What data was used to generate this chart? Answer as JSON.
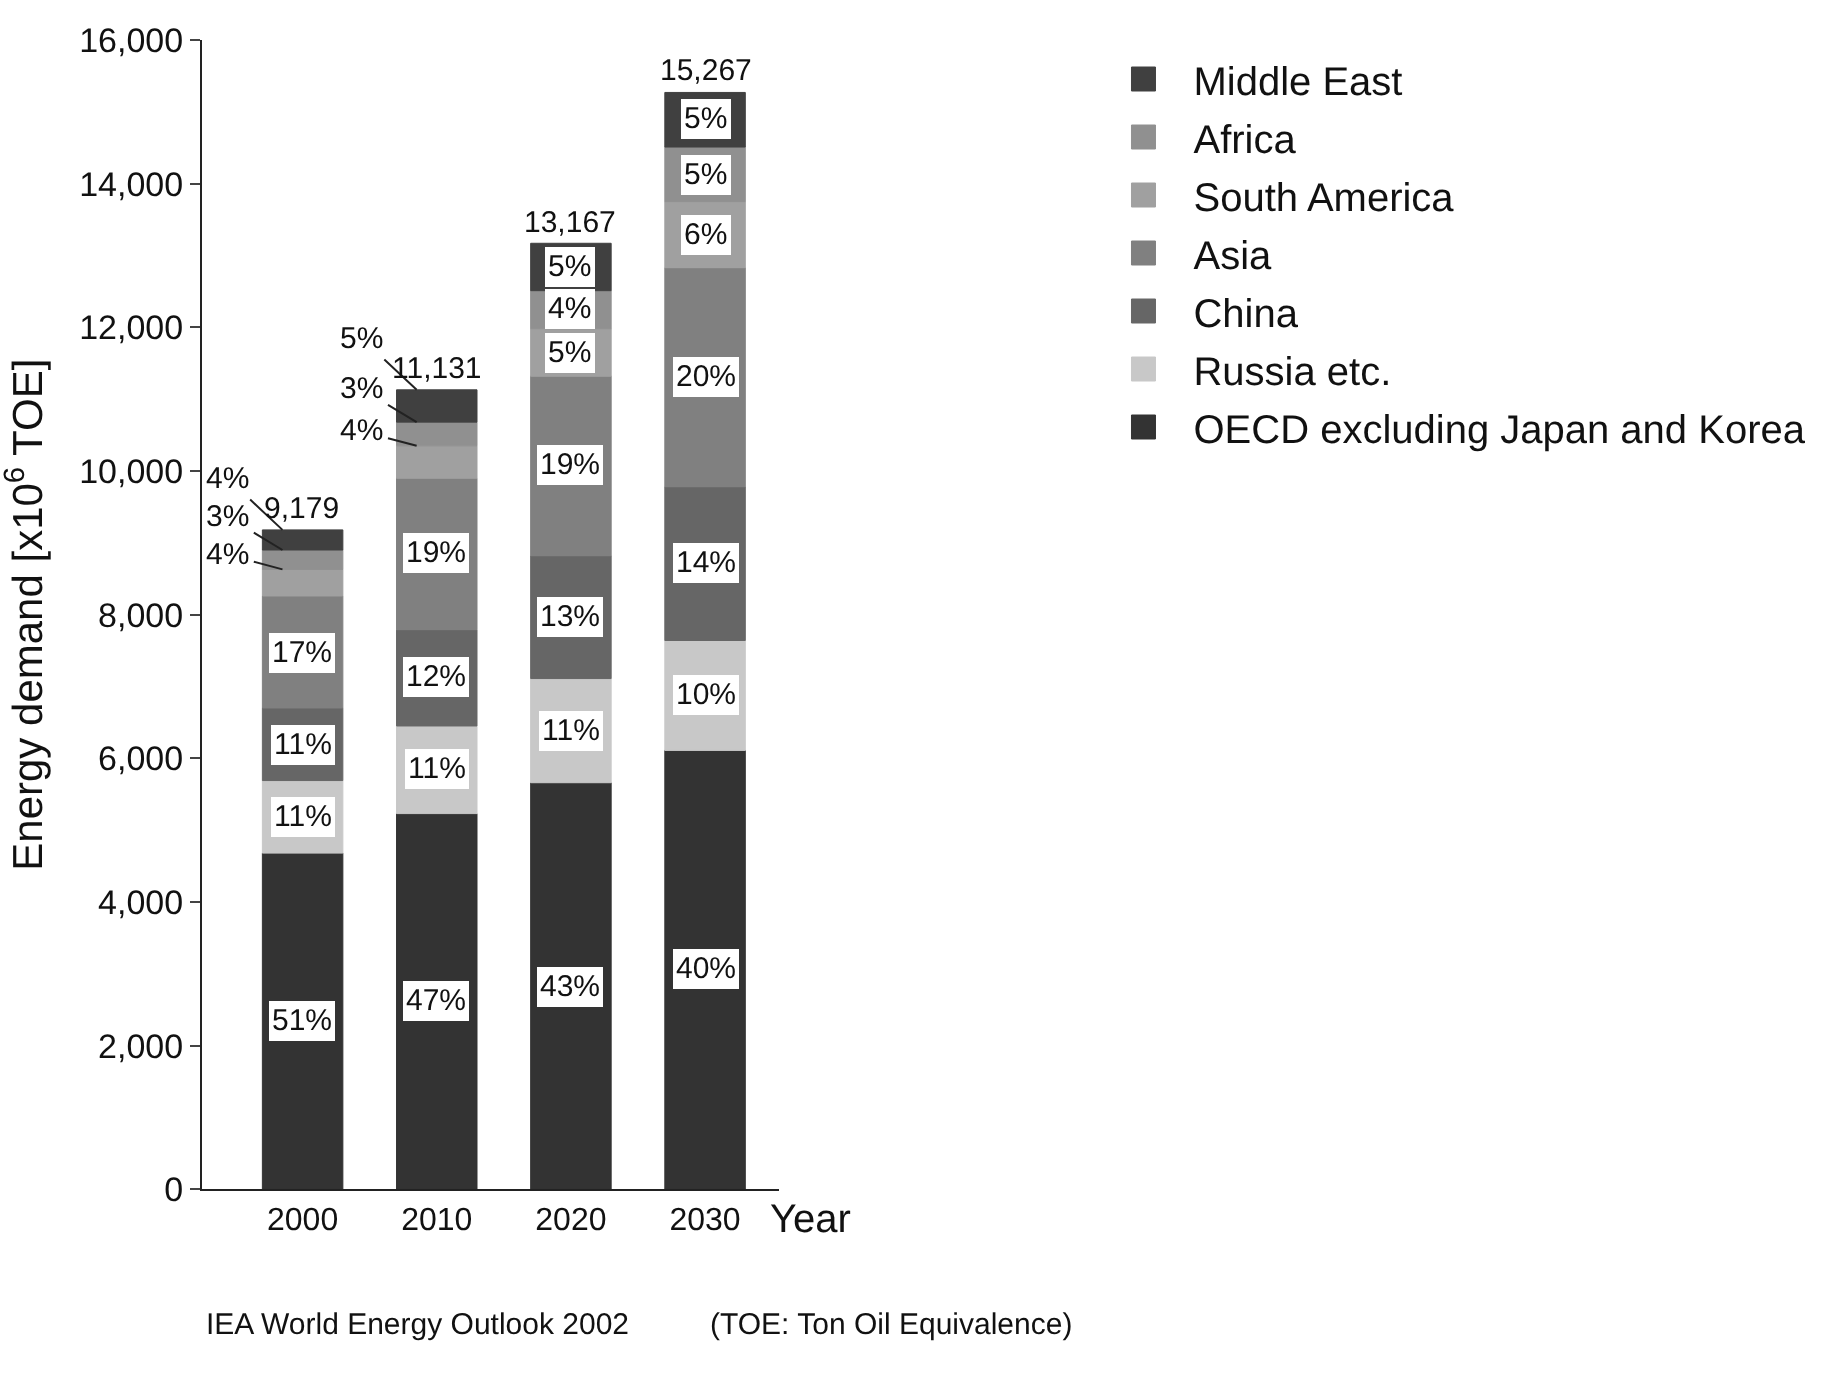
{
  "chart_data": {
    "type": "bar",
    "stacked": true,
    "ylabel": "Energy demand [x10$^{6}$ TOE]",
    "xlabel": "Year",
    "categories": [
      "2000",
      "2010",
      "2020",
      "2030"
    ],
    "ylim": [
      0,
      16000
    ],
    "yticks": [
      0,
      {
        "value": 2000,
        "label": "2,000"
      },
      {
        "value": 4000,
        "label": "4,000"
      },
      {
        "value": 6000,
        "label": "6,000"
      },
      {
        "value": 8000,
        "label": "8,000"
      },
      {
        "value": 10000,
        "label": "10,000"
      },
      {
        "value": 12000,
        "label": "12,000"
      },
      {
        "value": 14000,
        "label": "14,000"
      },
      {
        "value": 16000,
        "label": "16,000"
      }
    ],
    "legend": "right",
    "series": [
      {
        "name": "OECD excluding Japan and Korea",
        "color": "#333333",
        "values": [
          4680,
          5230,
          5660,
          6110
        ]
      },
      {
        "name": "Russia etc.",
        "color": "#c8c8c8",
        "values": [
          1010,
          1220,
          1450,
          1530
        ]
      },
      {
        "name": "China",
        "color": "#666666",
        "values": [
          1010,
          1340,
          1710,
          2140
        ]
      },
      {
        "name": "Asia",
        "color": "#808080",
        "values": [
          1560,
          2110,
          2500,
          3050
        ]
      },
      {
        "name": "South America",
        "color": "#a0a0a0",
        "values": [
          370,
          450,
          660,
          920
        ]
      },
      {
        "name": "Africa",
        "color": "#909090",
        "values": [
          270,
          330,
          530,
          760
        ]
      },
      {
        "name": "Middle East",
        "color": "#404040",
        "values": [
          280,
          450,
          660,
          760
        ]
      }
    ],
    "totals": [
      "9,179",
      "11,131",
      "13,167",
      "15,267"
    ],
    "annotations": [
      {
        "text": "51%",
        "x": "2000",
        "y": 2340
      },
      {
        "text": "11%",
        "x": "2000",
        "y": 5185
      },
      {
        "text": "11%",
        "x": "2000",
        "y": 6195
      },
      {
        "text": "17%",
        "x": "2000",
        "y": 7480
      },
      {
        "text": "4%",
        "x": "2000",
        "y": 8630
      },
      {
        "text": "3%",
        "x": "2000",
        "y": 8900
      },
      {
        "text": "4%",
        "x": "2000",
        "y": 9180
      },
      {
        "text": "47%",
        "x": "2010",
        "y": 2615
      },
      {
        "text": "11%",
        "x": "2010",
        "y": 5840
      },
      {
        "text": "12%",
        "x": "2010",
        "y": 7120
      },
      {
        "text": "19%",
        "x": "2010",
        "y": 8845
      },
      {
        "text": "4%",
        "x": "2010",
        "y": 10350
      },
      {
        "text": "3%",
        "x": "2010",
        "y": 10680
      },
      {
        "text": "5%",
        "x": "2010",
        "y": 11130
      },
      {
        "text": "43%",
        "x": "2020",
        "y": 2830
      },
      {
        "text": "11%",
        "x": "2020",
        "y": 6385
      },
      {
        "text": "13%",
        "x": "2020",
        "y": 7965
      },
      {
        "text": "19%",
        "x": "2020",
        "y": 10070
      },
      {
        "text": "5%",
        "x": "2020",
        "y": 11650
      },
      {
        "text": "4%",
        "x": "2020",
        "y": 12245
      },
      {
        "text": "5%",
        "x": "2020",
        "y": 12840
      },
      {
        "text": "40%",
        "x": "2030",
        "y": 3055
      },
      {
        "text": "10%",
        "x": "2030",
        "y": 6875
      },
      {
        "text": "14%",
        "x": "2030",
        "y": 8710
      },
      {
        "text": "20%",
        "x": "2030",
        "y": 11305
      },
      {
        "text": "6%",
        "x": "2030",
        "y": 13290
      },
      {
        "text": "5%",
        "x": "2030",
        "y": 14130
      },
      {
        "text": "5%",
        "x": "2030",
        "y": 14890
      },
      "IEA World Energy Outlook 2002",
      "(TOE: Ton Oil Equivalence)"
    ]
  }
}
